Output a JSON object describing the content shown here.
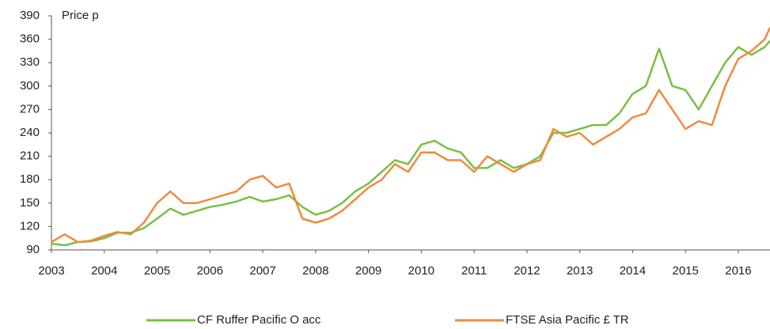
{
  "chart_data": {
    "type": "line",
    "y_label": "Price p",
    "x": [
      2003.0,
      2003.25,
      2003.5,
      2003.75,
      2004.0,
      2004.25,
      2004.5,
      2004.75,
      2005.0,
      2005.25,
      2005.5,
      2005.75,
      2006.0,
      2006.25,
      2006.5,
      2006.75,
      2007.0,
      2007.25,
      2007.5,
      2007.75,
      2008.0,
      2008.25,
      2008.5,
      2008.75,
      2009.0,
      2009.25,
      2009.5,
      2009.75,
      2010.0,
      2010.25,
      2010.5,
      2010.75,
      2011.0,
      2011.25,
      2011.5,
      2011.75,
      2012.0,
      2012.25,
      2012.5,
      2012.75,
      2013.0,
      2013.25,
      2013.5,
      2013.75,
      2014.0,
      2014.25,
      2014.5,
      2014.75,
      2015.0,
      2015.25,
      2015.5,
      2015.75,
      2016.0,
      2016.25,
      2016.5,
      2016.6
    ],
    "series": [
      {
        "name": "CF Ruffer Pacific O acc",
        "color": "#77c043",
        "values": [
          98,
          96,
          100,
          101,
          105,
          112,
          112,
          118,
          130,
          143,
          135,
          140,
          145,
          148,
          152,
          158,
          152,
          155,
          160,
          145,
          135,
          140,
          150,
          165,
          175,
          190,
          205,
          200,
          225,
          230,
          220,
          215,
          195,
          195,
          205,
          195,
          200,
          210,
          240,
          240,
          245,
          250,
          250,
          265,
          290,
          300,
          348,
          300,
          295,
          270,
          300,
          330,
          350,
          340,
          350,
          358
        ]
      },
      {
        "name": "FTSE Asia Pacific £ TR",
        "color": "#f08a3e",
        "values": [
          100,
          110,
          100,
          102,
          108,
          113,
          110,
          125,
          150,
          165,
          150,
          150,
          155,
          160,
          165,
          180,
          185,
          170,
          175,
          130,
          125,
          130,
          140,
          155,
          170,
          180,
          200,
          190,
          215,
          215,
          205,
          205,
          190,
          210,
          200,
          190,
          200,
          205,
          245,
          235,
          240,
          225,
          235,
          245,
          260,
          265,
          295,
          270,
          245,
          255,
          250,
          300,
          335,
          345,
          360,
          375
        ]
      }
    ],
    "xlim": [
      2003,
      2016.6
    ],
    "xticks": [
      2003,
      2004,
      2005,
      2006,
      2007,
      2008,
      2009,
      2010,
      2011,
      2012,
      2013,
      2014,
      2015,
      2016
    ],
    "ylim": [
      90,
      390
    ],
    "yticks": [
      90,
      120,
      150,
      180,
      210,
      240,
      270,
      300,
      330,
      360,
      390
    ]
  }
}
